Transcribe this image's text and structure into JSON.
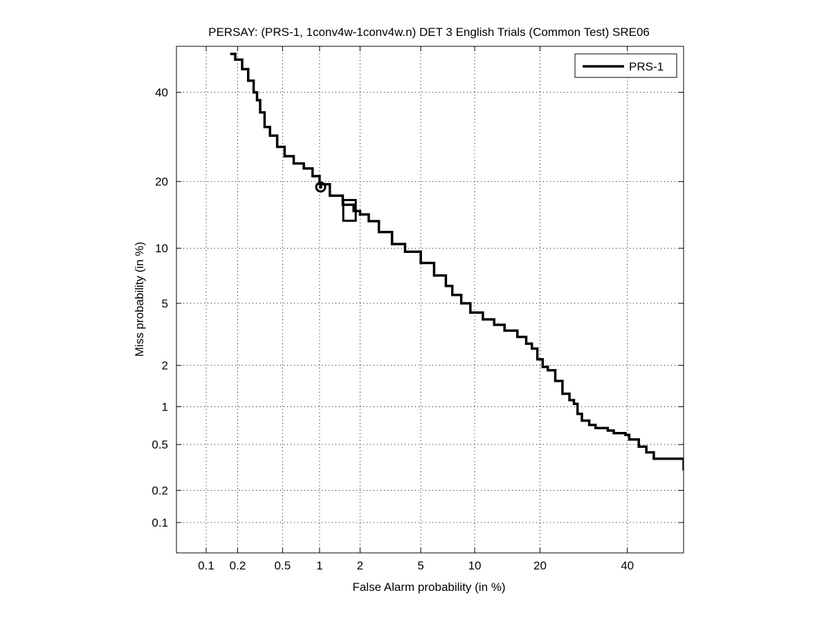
{
  "chart_data": {
    "type": "line",
    "title": "PERSAY: (PRS-1, 1conv4w-1conv4w.n) DET 3 English Trials (Common Test) SRE06",
    "xlabel": "False Alarm probability (in %)",
    "ylabel": "Miss probability (in %)",
    "xscale": "normal-deviate",
    "yscale": "normal-deviate",
    "xlim": [
      0.05,
      55
    ],
    "ylim": [
      0.05,
      52
    ],
    "xticks": [
      0.1,
      0.2,
      0.5,
      1,
      2,
      5,
      10,
      20,
      40
    ],
    "xtick_labels": [
      "0.1",
      "0.2",
      "0.5",
      "1",
      "2",
      "5",
      "10",
      "20",
      "40"
    ],
    "yticks": [
      0.1,
      0.2,
      0.5,
      1,
      2,
      5,
      10,
      20,
      40
    ],
    "ytick_labels": [
      "0.1",
      "0.2",
      "0.5",
      "1",
      "2",
      "5",
      "10",
      "20",
      "40"
    ],
    "grid": true,
    "legend": "top-right",
    "color": "#000000",
    "series": [
      {
        "name": "PRS-1",
        "x": [
          0.17,
          0.19,
          0.22,
          0.25,
          0.28,
          0.3,
          0.32,
          0.35,
          0.39,
          0.45,
          0.52,
          0.62,
          0.75,
          0.88,
          1.0,
          1.2,
          1.5,
          1.8,
          2.0,
          2.3,
          2.7,
          3.3,
          4.0,
          5.0,
          6.0,
          7.0,
          7.6,
          8.5,
          9.5,
          11.0,
          12.5,
          14.0,
          16.0,
          17.5,
          18.5,
          19.5,
          20.5,
          21.5,
          23.0,
          24.5,
          26.0,
          27.0,
          27.8,
          28.8,
          30.5,
          32.0,
          35.0,
          36.5,
          39.5,
          40.5,
          43.0,
          45.0,
          47.0,
          55.0
        ],
        "y": [
          50.0,
          48.5,
          46.0,
          43.0,
          40.0,
          38.0,
          35.0,
          31.5,
          29.5,
          27.0,
          25.0,
          23.5,
          22.5,
          21.0,
          19.5,
          17.5,
          16.0,
          15.0,
          14.5,
          13.5,
          12.0,
          10.5,
          9.6,
          8.4,
          7.2,
          6.3,
          5.6,
          5.0,
          4.4,
          4.0,
          3.7,
          3.4,
          3.1,
          2.8,
          2.6,
          2.2,
          1.95,
          1.85,
          1.55,
          1.25,
          1.12,
          1.05,
          0.88,
          0.78,
          0.72,
          0.68,
          0.65,
          0.62,
          0.6,
          0.55,
          0.48,
          0.43,
          0.38,
          0.3
        ]
      }
    ],
    "markers": [
      {
        "shape": "circle",
        "x": 1.02,
        "y": 19.0
      },
      {
        "shape": "square",
        "x": 1.68,
        "y": 15.0
      }
    ]
  }
}
